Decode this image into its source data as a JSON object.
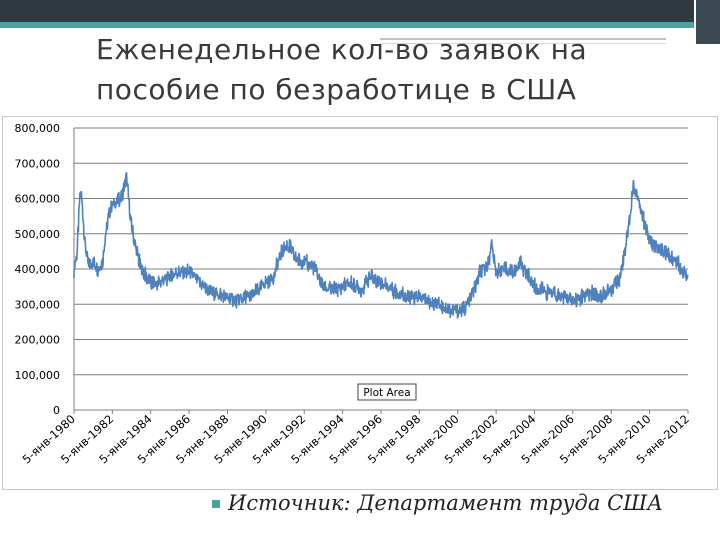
{
  "slide": {
    "title": "Еженедельное кол-во заявок на пособие по безработице в США",
    "source": "Источник: Департамент труда США"
  },
  "chart_data": {
    "type": "line",
    "title": "",
    "xlabel": "",
    "ylabel": "",
    "ylim": [
      0,
      800000
    ],
    "yticks": [
      0,
      100000,
      200000,
      300000,
      400000,
      500000,
      600000,
      700000,
      800000
    ],
    "ytick_labels": [
      "0",
      "100,000",
      "200,000",
      "300,000",
      "400,000",
      "500,000",
      "600,000",
      "700,000",
      "800,000"
    ],
    "xlim": [
      "1980-01-05",
      "2012-01-05"
    ],
    "xtick_labels": [
      "5-янв-1980",
      "5-янв-1982",
      "5-янв-1984",
      "5-янв-1986",
      "5-янв-1988",
      "5-янв-1990",
      "5-янв-1992",
      "5-янв-1994",
      "5-янв-1996",
      "5-янв-1998",
      "5-янв-2000",
      "5-янв-2002",
      "5-янв-2004",
      "5-янв-2006",
      "5-янв-2008",
      "5-янв-2010",
      "5-янв-2012"
    ],
    "grid": "horizontal",
    "legend": "none",
    "annotation": "Plot Area",
    "line_color": "#4f81bd",
    "series": [
      {
        "x": [
          "1980-01-05",
          "1980-03-01",
          "1980-05-01",
          "1980-06-01",
          "1980-08-01",
          "1980-10-01",
          "1981-01-01",
          "1981-04-01",
          "1981-07-01",
          "1981-09-01",
          "1981-11-01",
          "1982-01-01",
          "1982-04-01",
          "1982-07-01",
          "1982-10-01",
          "1983-01-01",
          "1983-04-01",
          "1983-07-01",
          "1983-10-01",
          "1984-01-01",
          "1984-06-01",
          "1985-01-01",
          "1985-06-01",
          "1986-01-01",
          "1986-06-01",
          "1987-01-01",
          "1987-06-01",
          "1988-01-01",
          "1988-06-01",
          "1989-01-01",
          "1989-06-01",
          "1990-01-01",
          "1990-06-01",
          "1990-11-01",
          "1991-03-01",
          "1991-08-01",
          "1992-01-01",
          "1992-06-01",
          "1992-09-01",
          "1993-01-01",
          "1993-06-01",
          "1994-01-01",
          "1994-06-01",
          "1995-01-01",
          "1995-06-01",
          "1996-01-01",
          "1996-06-01",
          "1997-01-01",
          "1997-06-01",
          "1998-01-01",
          "1998-06-01",
          "1999-01-01",
          "1999-06-01",
          "2000-01-01",
          "2000-06-01",
          "2001-01-01",
          "2001-03-01",
          "2001-06-01",
          "2001-09-01",
          "2001-10-01",
          "2002-01-01",
          "2002-06-01",
          "2003-01-01",
          "2003-04-01",
          "2003-09-01",
          "2004-01-01",
          "2004-06-01",
          "2005-01-01",
          "2005-09-01",
          "2006-01-01",
          "2006-06-01",
          "2007-01-01",
          "2007-06-01",
          "2008-01-01",
          "2008-06-01",
          "2008-10-01",
          "2009-01-01",
          "2009-03-01",
          "2009-06-01",
          "2009-10-01",
          "2010-01-01",
          "2010-06-01",
          "2011-01-01",
          "2011-06-01",
          "2011-10-01",
          "2012-01-05"
        ],
        "y": [
          400000,
          440000,
          620000,
          600000,
          470000,
          410000,
          420000,
          400000,
          420000,
          500000,
          560000,
          580000,
          590000,
          600000,
          660000,
          520000,
          460000,
          400000,
          380000,
          360000,
          360000,
          380000,
          390000,
          390000,
          370000,
          340000,
          330000,
          320000,
          310000,
          320000,
          330000,
          360000,
          380000,
          450000,
          470000,
          430000,
          420000,
          410000,
          390000,
          350000,
          340000,
          350000,
          360000,
          340000,
          380000,
          360000,
          350000,
          330000,
          320000,
          320000,
          310000,
          300000,
          290000,
          280000,
          290000,
          360000,
          390000,
          400000,
          430000,
          480000,
          390000,
          400000,
          390000,
          420000,
          380000,
          350000,
          340000,
          330000,
          320000,
          310000,
          320000,
          330000,
          320000,
          340000,
          370000,
          460000,
          560000,
          640000,
          600000,
          530000,
          480000,
          460000,
          440000,
          420000,
          400000,
          380000
        ]
      }
    ]
  }
}
